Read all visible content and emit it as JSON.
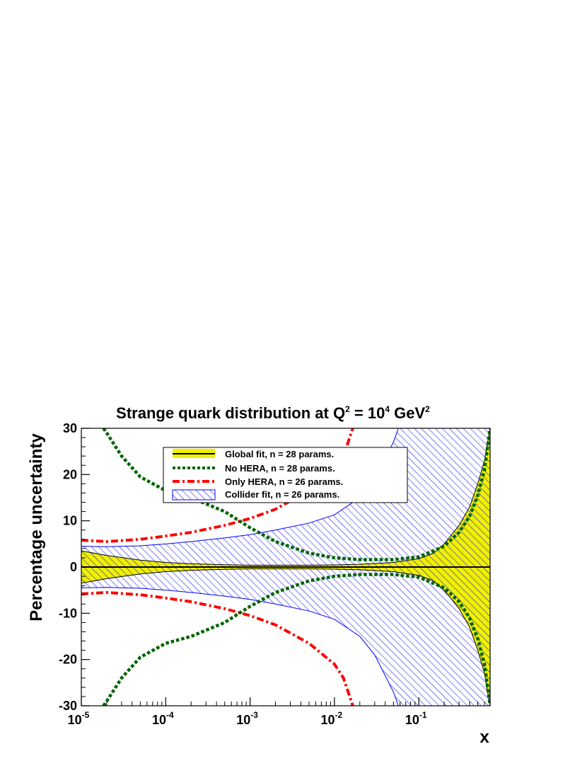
{
  "chart_data": {
    "type": "line",
    "title": {
      "main": "Strange quark distribution at Q",
      "q_exp": "2",
      "mid": " = 10",
      "mid_exp": "4",
      "end": " GeV",
      "end_exp": "2"
    },
    "xlabel": "x",
    "ylabel": "Percentage uncertainty",
    "x_scale": "log",
    "xlim": [
      1e-05,
      0.7
    ],
    "ylim": [
      -30,
      30
    ],
    "x_ticks": [
      {
        "value": 1e-05,
        "base": "10",
        "exp": "-5"
      },
      {
        "value": 0.0001,
        "base": "10",
        "exp": "-4"
      },
      {
        "value": 0.001,
        "base": "10",
        "exp": "-3"
      },
      {
        "value": 0.01,
        "base": "10",
        "exp": "-2"
      },
      {
        "value": 0.1,
        "base": "10",
        "exp": "-1"
      }
    ],
    "y_ticks": [
      {
        "value": 30,
        "label": "30"
      },
      {
        "value": 20,
        "label": "20"
      },
      {
        "value": 10,
        "label": "10"
      },
      {
        "value": 0,
        "label": "0"
      },
      {
        "value": -10,
        "label": "-10"
      },
      {
        "value": -20,
        "label": "-20"
      },
      {
        "value": -30,
        "label": "-30"
      }
    ],
    "legend": {
      "position": "top-center",
      "entries": [
        {
          "label": "Global fit, n = 28 params.",
          "style": "yellow band with black line",
          "color": "#f0f000"
        },
        {
          "label": "No HERA, n = 28 params.",
          "style": "green dotted",
          "color": "#006400"
        },
        {
          "label": "Only HERA, n = 26 params.",
          "style": "red dash-dot",
          "color": "#ff0000"
        },
        {
          "label": "Collider fit, n = 26 params.",
          "style": "blue hatched band",
          "color": "#0000ff"
        }
      ]
    },
    "series": [
      {
        "name": "Global fit, n = 28 params.",
        "kind": "band",
        "color": "#f0f000",
        "x": [
          1e-05,
          2e-05,
          5e-05,
          0.0001,
          0.0002,
          0.0005,
          0.001,
          0.002,
          0.005,
          0.01,
          0.02,
          0.05,
          0.1,
          0.15,
          0.2,
          0.3,
          0.4,
          0.5,
          0.6,
          0.7
        ],
        "upper": [
          3.5,
          2.5,
          1.5,
          1.0,
          0.7,
          0.5,
          0.4,
          0.4,
          0.4,
          0.45,
          0.6,
          1.0,
          1.8,
          3.0,
          5.0,
          9.0,
          13.0,
          18.0,
          23.0,
          30.0
        ],
        "lower": [
          -3.5,
          -2.5,
          -1.5,
          -1.0,
          -0.7,
          -0.5,
          -0.4,
          -0.4,
          -0.4,
          -0.45,
          -0.6,
          -1.0,
          -1.8,
          -3.0,
          -5.0,
          -9.0,
          -13.0,
          -18.0,
          -23.0,
          -30.0
        ]
      },
      {
        "name": "Collider fit, n = 26 params.",
        "kind": "hatched-band",
        "color": "#0000ff",
        "x": [
          1e-05,
          2e-05,
          5e-05,
          0.0001,
          0.0002,
          0.0005,
          0.001,
          0.002,
          0.005,
          0.01,
          0.02,
          0.03,
          0.05,
          0.06,
          0.1,
          0.2,
          0.5,
          0.7
        ],
        "upper": [
          4.5,
          4.4,
          4.6,
          5.0,
          5.5,
          6.3,
          7.0,
          8.0,
          9.5,
          11.3,
          15.0,
          19.0,
          27.0,
          31.0,
          34.0,
          34.0,
          34.0,
          34.0
        ],
        "lower": [
          -4.5,
          -4.4,
          -4.6,
          -5.0,
          -5.5,
          -6.3,
          -7.0,
          -8.0,
          -9.5,
          -11.3,
          -15.0,
          -19.0,
          -27.0,
          -31.0,
          -34.0,
          -34.0,
          -34.0,
          -34.0
        ]
      },
      {
        "name": "No HERA, n = 28 params.",
        "kind": "line",
        "dash": "dotted",
        "color": "#006400",
        "x": [
          1.83e-05,
          2e-05,
          3e-05,
          5e-05,
          0.0001,
          0.0002,
          0.0005,
          0.001,
          0.002,
          0.005,
          0.01,
          0.02,
          0.05,
          0.1,
          0.2,
          0.3,
          0.4,
          0.5,
          0.6,
          0.7
        ],
        "upper": [
          30,
          29.0,
          24.0,
          19.5,
          16.5,
          15.0,
          12.0,
          8.5,
          5.5,
          3.0,
          2.0,
          1.6,
          1.6,
          2.2,
          4.5,
          7.5,
          11.0,
          15.5,
          21.0,
          30.0
        ],
        "lower": [
          -30,
          -29.0,
          -24.0,
          -19.5,
          -16.5,
          -15.0,
          -12.0,
          -8.5,
          -5.5,
          -3.0,
          -2.0,
          -1.6,
          -1.6,
          -2.2,
          -4.5,
          -7.5,
          -11.0,
          -15.5,
          -21.0,
          -30.0
        ]
      },
      {
        "name": "Only HERA, n = 26 params.",
        "kind": "line",
        "dash": "dash-dot",
        "color": "#ff0000",
        "x": [
          1e-05,
          2e-05,
          5e-05,
          0.0001,
          0.0002,
          0.0005,
          0.001,
          0.002,
          0.005,
          0.01,
          0.0128,
          0.0165
        ],
        "upper": [
          5.8,
          5.5,
          6.0,
          6.7,
          7.5,
          9.0,
          10.5,
          12.5,
          16.5,
          21.0,
          24.0,
          30.0
        ],
        "lower": [
          -5.8,
          -5.5,
          -6.0,
          -6.7,
          -7.5,
          -9.0,
          -10.5,
          -12.5,
          -16.5,
          -21.0,
          -24.0,
          -30.0
        ]
      }
    ]
  }
}
